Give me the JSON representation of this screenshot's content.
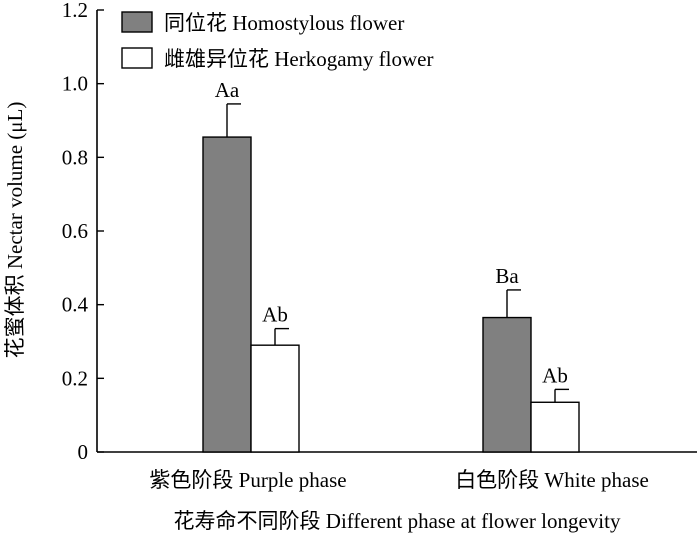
{
  "chart_data": {
    "type": "bar",
    "categories": [
      "紫色阶段 Purple phase",
      "白色阶段 White phase"
    ],
    "series": [
      {
        "name": "同位花 Homostylous flower",
        "values": [
          0.855,
          0.365
        ],
        "errors": [
          0.09,
          0.075
        ],
        "labels": [
          "Aa",
          "Ba"
        ],
        "color": "#808080"
      },
      {
        "name": "雌雄异位花 Herkogamy flower",
        "values": [
          0.29,
          0.135
        ],
        "errors": [
          0.045,
          0.035
        ],
        "labels": [
          "Ab",
          "Ab"
        ],
        "color": "#ffffff"
      }
    ],
    "xlabel": "花寿命不同阶段 Different phase at flower longevity",
    "ylabel": "花蜜体积 Nectar volume (μL)",
    "ylim": [
      0,
      1.2
    ],
    "yticks": [
      "0",
      "0.2",
      "0.4",
      "0.6",
      "0.8",
      "1.0",
      "1.2"
    ],
    "legend_position": "top-left",
    "grid": false
  }
}
